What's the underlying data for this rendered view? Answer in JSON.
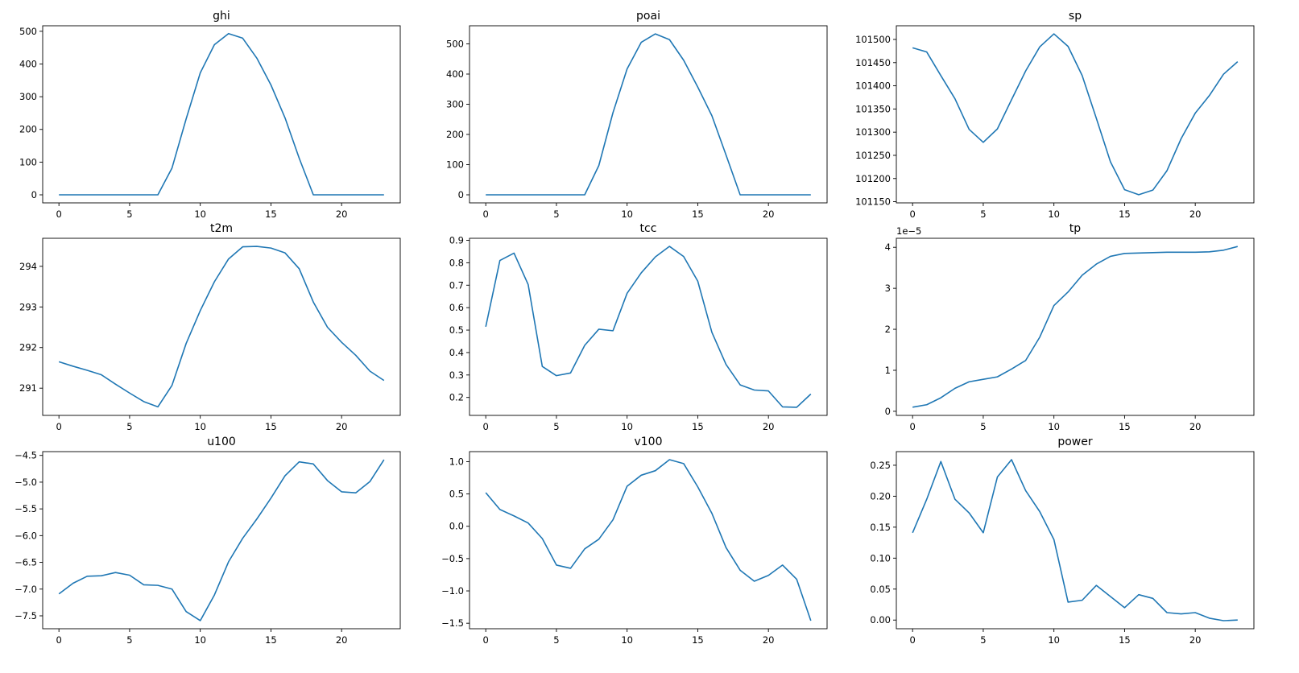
{
  "figure": {
    "background": "#ffffff",
    "line_color": "#1f77b4",
    "axis_color": "#000000"
  },
  "chart_data": [
    {
      "type": "line",
      "title": "ghi",
      "xlabel": "",
      "ylabel": "",
      "x": [
        0,
        1,
        2,
        3,
        4,
        5,
        6,
        7,
        8,
        9,
        10,
        11,
        12,
        13,
        14,
        15,
        16,
        17,
        18,
        19,
        20,
        21,
        22,
        23
      ],
      "values": [
        0,
        0,
        0,
        0,
        0,
        0,
        0,
        0,
        82,
        232,
        373,
        459,
        493,
        479,
        418,
        336,
        235,
        112,
        0,
        0,
        0,
        0,
        0,
        0
      ],
      "xticks": [
        0,
        5,
        10,
        15,
        20
      ],
      "xtick_labels": [
        "0",
        "5",
        "10",
        "15",
        "20"
      ],
      "yticks": [
        0,
        100,
        200,
        300,
        400,
        500
      ],
      "ytick_labels": [
        "0",
        "100",
        "200",
        "300",
        "400",
        "500"
      ],
      "xlim": [
        -1.15,
        24.15
      ],
      "ylim": [
        -24.6,
        516.9
      ],
      "offset_text": ""
    },
    {
      "type": "line",
      "title": "poai",
      "xlabel": "",
      "ylabel": "",
      "x": [
        0,
        1,
        2,
        3,
        4,
        5,
        6,
        7,
        8,
        9,
        10,
        11,
        12,
        13,
        14,
        15,
        16,
        17,
        18,
        19,
        20,
        21,
        22,
        23
      ],
      "values": [
        0,
        0,
        0,
        0,
        0,
        0,
        0,
        0,
        97,
        272,
        417,
        505,
        533,
        514,
        446,
        357,
        262,
        132,
        0,
        0,
        0,
        0,
        0,
        0
      ],
      "xticks": [
        0,
        5,
        10,
        15,
        20
      ],
      "xtick_labels": [
        "0",
        "5",
        "10",
        "15",
        "20"
      ],
      "yticks": [
        0,
        100,
        200,
        300,
        400,
        500
      ],
      "ytick_labels": [
        "0",
        "100",
        "200",
        "300",
        "400",
        "500"
      ],
      "xlim": [
        -1.15,
        24.15
      ],
      "ylim": [
        -26.7,
        560
      ],
      "offset_text": ""
    },
    {
      "type": "line",
      "title": "sp",
      "xlabel": "",
      "ylabel": "",
      "x": [
        0,
        1,
        2,
        3,
        4,
        5,
        6,
        7,
        8,
        9,
        10,
        11,
        12,
        13,
        14,
        15,
        16,
        17,
        18,
        19,
        20,
        21,
        22,
        23
      ],
      "values": [
        101482,
        101473,
        101422,
        101372,
        101306,
        101278,
        101307,
        101370,
        101432,
        101484,
        101512,
        101485,
        101422,
        101330,
        101236,
        101176,
        101165,
        101175,
        101217,
        101286,
        101341,
        101379,
        101425,
        101452
      ],
      "xticks": [
        0,
        5,
        10,
        15,
        20
      ],
      "xtick_labels": [
        "0",
        "5",
        "10",
        "15",
        "20"
      ],
      "yticks": [
        101150,
        101200,
        101250,
        101300,
        101350,
        101400,
        101450,
        101500
      ],
      "ytick_labels": [
        "101150",
        "101200",
        "101250",
        "101300",
        "101350",
        "101400",
        "101450",
        "101500"
      ],
      "xlim": [
        -1.15,
        24.15
      ],
      "ylim": [
        101147.5,
        101529.5
      ],
      "offset_text": ""
    },
    {
      "type": "line",
      "title": "t2m",
      "xlabel": "",
      "ylabel": "",
      "x": [
        0,
        1,
        2,
        3,
        4,
        5,
        6,
        7,
        8,
        9,
        10,
        11,
        12,
        13,
        14,
        15,
        16,
        17,
        18,
        19,
        20,
        21,
        22,
        23
      ],
      "values": [
        291.65,
        291.54,
        291.44,
        291.33,
        291.1,
        290.88,
        290.67,
        290.54,
        291.07,
        292.1,
        292.91,
        293.62,
        294.18,
        294.48,
        294.49,
        294.45,
        294.33,
        293.94,
        293.12,
        292.5,
        292.13,
        291.81,
        291.42,
        291.19
      ],
      "xticks": [
        0,
        5,
        10,
        15,
        20
      ],
      "xtick_labels": [
        "0",
        "5",
        "10",
        "15",
        "20"
      ],
      "yticks": [
        291,
        292,
        293,
        294
      ],
      "ytick_labels": [
        "291",
        "292",
        "293",
        "294"
      ],
      "xlim": [
        -1.15,
        24.15
      ],
      "ylim": [
        290.33,
        294.69
      ],
      "offset_text": ""
    },
    {
      "type": "line",
      "title": "tcc",
      "xlabel": "",
      "ylabel": "",
      "x": [
        0,
        1,
        2,
        3,
        4,
        5,
        6,
        7,
        8,
        9,
        10,
        11,
        12,
        13,
        14,
        15,
        16,
        17,
        18,
        19,
        20,
        21,
        22,
        23
      ],
      "values": [
        0.515,
        0.81,
        0.843,
        0.703,
        0.338,
        0.297,
        0.309,
        0.432,
        0.504,
        0.497,
        0.664,
        0.755,
        0.826,
        0.873,
        0.828,
        0.718,
        0.49,
        0.347,
        0.256,
        0.233,
        0.229,
        0.158,
        0.156,
        0.215
      ],
      "xticks": [
        0,
        5,
        10,
        15,
        20
      ],
      "xtick_labels": [
        "0",
        "5",
        "10",
        "15",
        "20"
      ],
      "yticks": [
        0.2,
        0.3,
        0.4,
        0.5,
        0.6,
        0.7,
        0.8,
        0.9
      ],
      "ytick_labels": [
        "0.2",
        "0.3",
        "0.4",
        "0.5",
        "0.6",
        "0.7",
        "0.8",
        "0.9"
      ],
      "xlim": [
        -1.15,
        24.15
      ],
      "ylim": [
        0.12,
        0.909
      ],
      "offset_text": ""
    },
    {
      "type": "line",
      "title": "tp",
      "xlabel": "",
      "ylabel": "",
      "x": [
        0,
        1,
        2,
        3,
        4,
        5,
        6,
        7,
        8,
        9,
        10,
        11,
        12,
        13,
        14,
        15,
        16,
        17,
        18,
        19,
        20,
        21,
        22,
        23
      ],
      "values": [
        1e-06,
        1.6e-06,
        3.3e-06,
        5.6e-06,
        7.2e-06,
        7.8e-06,
        8.4e-06,
        1.03e-05,
        1.24e-05,
        1.81e-05,
        2.58e-05,
        2.91e-05,
        3.32e-05,
        3.59e-05,
        3.78e-05,
        3.85e-05,
        3.86e-05,
        3.87e-05,
        3.88e-05,
        3.88e-05,
        3.88e-05,
        3.89e-05,
        3.93e-05,
        4.02e-05
      ],
      "xticks": [
        0,
        5,
        10,
        15,
        20
      ],
      "xtick_labels": [
        "0",
        "5",
        "10",
        "15",
        "20"
      ],
      "yticks": [
        0,
        1e-05,
        2e-05,
        3e-05,
        4e-05
      ],
      "ytick_labels": [
        "0",
        "1",
        "2",
        "3",
        "4"
      ],
      "xlim": [
        -1.15,
        24.15
      ],
      "ylim": [
        -1e-06,
        4.22e-05
      ],
      "offset_text": "1e−5"
    },
    {
      "type": "line",
      "title": "u100",
      "xlabel": "",
      "ylabel": "",
      "x": [
        0,
        1,
        2,
        3,
        4,
        5,
        6,
        7,
        8,
        9,
        10,
        11,
        12,
        13,
        14,
        15,
        16,
        17,
        18,
        19,
        20,
        21,
        22,
        23
      ],
      "values": [
        -7.09,
        -6.89,
        -6.76,
        -6.75,
        -6.69,
        -6.74,
        -6.92,
        -6.93,
        -7.0,
        -7.42,
        -7.59,
        -7.11,
        -6.49,
        -6.05,
        -5.69,
        -5.3,
        -4.88,
        -4.62,
        -4.66,
        -4.97,
        -5.18,
        -5.2,
        -4.99,
        -4.58
      ],
      "xticks": [
        0,
        5,
        10,
        15,
        20
      ],
      "xtick_labels": [
        "0",
        "5",
        "10",
        "15",
        "20"
      ],
      "yticks": [
        -7.5,
        -7.0,
        -6.5,
        -6.0,
        -5.5,
        -5.0,
        -4.5
      ],
      "ytick_labels": [
        "−7.5",
        "−7.0",
        "−6.5",
        "−6.0",
        "−5.5",
        "−5.0",
        "−4.5"
      ],
      "xlim": [
        -1.15,
        24.15
      ],
      "ylim": [
        -7.741,
        -4.429
      ],
      "offset_text": ""
    },
    {
      "type": "line",
      "title": "v100",
      "xlabel": "",
      "ylabel": "",
      "x": [
        0,
        1,
        2,
        3,
        4,
        5,
        6,
        7,
        8,
        9,
        10,
        11,
        12,
        13,
        14,
        15,
        16,
        17,
        18,
        19,
        20,
        21,
        22,
        23
      ],
      "values": [
        0.52,
        0.26,
        0.16,
        0.05,
        -0.19,
        -0.6,
        -0.65,
        -0.35,
        -0.2,
        0.1,
        0.62,
        0.79,
        0.86,
        1.03,
        0.97,
        0.61,
        0.2,
        -0.33,
        -0.68,
        -0.85,
        -0.76,
        -0.6,
        -0.82,
        -1.46
      ],
      "xticks": [
        0,
        5,
        10,
        15,
        20
      ],
      "xtick_labels": [
        "0",
        "5",
        "10",
        "15",
        "20"
      ],
      "yticks": [
        -1.5,
        -1.0,
        -0.5,
        0.0,
        0.5,
        1.0
      ],
      "ytick_labels": [
        "−1.5",
        "−1.0",
        "−0.5",
        "0.0",
        "0.5",
        "1.0"
      ],
      "xlim": [
        -1.15,
        24.15
      ],
      "ylim": [
        -1.585,
        1.155
      ],
      "offset_text": ""
    },
    {
      "type": "line",
      "title": "power",
      "xlabel": "",
      "ylabel": "",
      "x": [
        0,
        1,
        2,
        3,
        4,
        5,
        6,
        7,
        8,
        9,
        10,
        11,
        12,
        13,
        14,
        15,
        16,
        17,
        18,
        19,
        20,
        21,
        22,
        23
      ],
      "values": [
        0.141,
        0.195,
        0.256,
        0.195,
        0.173,
        0.141,
        0.231,
        0.259,
        0.209,
        0.175,
        0.13,
        0.029,
        0.032,
        0.056,
        0.038,
        0.02,
        0.041,
        0.035,
        0.012,
        0.01,
        0.012,
        0.003,
        -0.001,
        0.0
      ],
      "xticks": [
        0,
        5,
        10,
        15,
        20
      ],
      "xtick_labels": [
        "0",
        "5",
        "10",
        "15",
        "20"
      ],
      "yticks": [
        0.0,
        0.05,
        0.1,
        0.15,
        0.2,
        0.25
      ],
      "ytick_labels": [
        "0.00",
        "0.05",
        "0.10",
        "0.15",
        "0.20",
        "0.25"
      ],
      "xlim": [
        -1.15,
        24.15
      ],
      "ylim": [
        -0.014,
        0.272
      ],
      "offset_text": ""
    }
  ]
}
